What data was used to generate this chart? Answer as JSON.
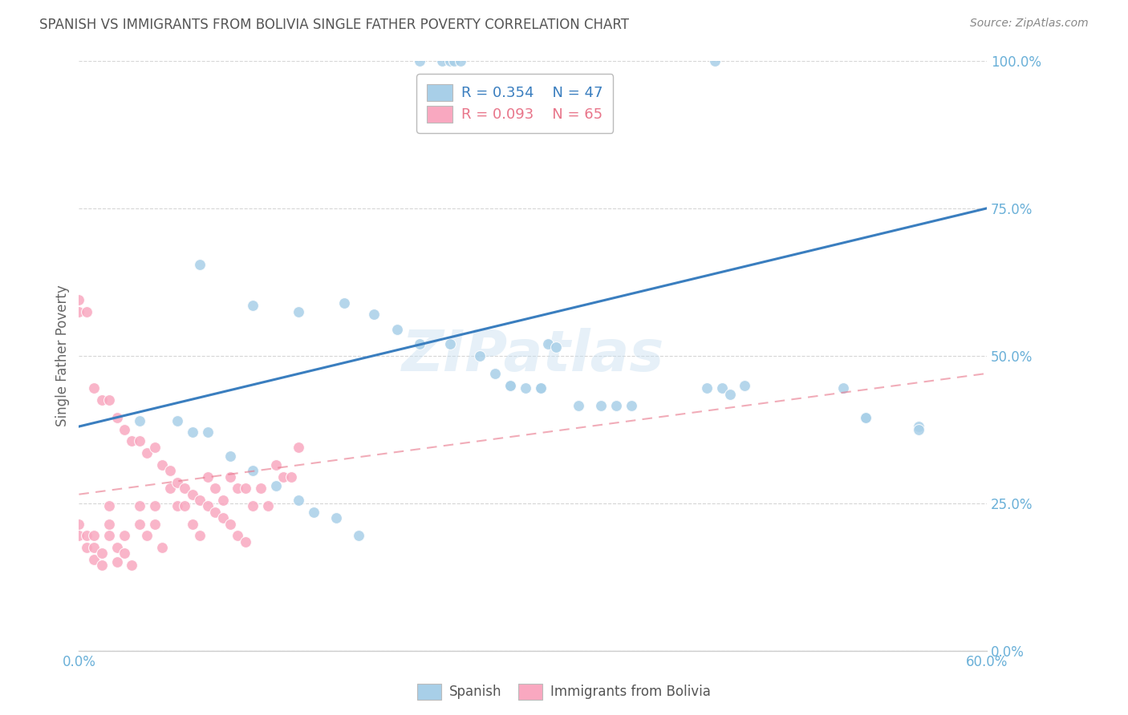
{
  "title": "SPANISH VS IMMIGRANTS FROM BOLIVIA SINGLE FATHER POVERTY CORRELATION CHART",
  "source": "Source: ZipAtlas.com",
  "ylabel": "Single Father Poverty",
  "ytick_labels": [
    "0.0%",
    "25.0%",
    "50.0%",
    "75.0%",
    "100.0%"
  ],
  "ytick_values": [
    0,
    0.25,
    0.5,
    0.75,
    1.0
  ],
  "xlim": [
    0,
    0.6
  ],
  "ylim": [
    0,
    1.0
  ],
  "legend_label_blue": "Spanish",
  "legend_label_pink": "Immigrants from Bolivia",
  "blue_color": "#a8cfe8",
  "pink_color": "#f9a8c0",
  "blue_line_color": "#3a7ebf",
  "pink_line_color": "#e8758a",
  "axis_color": "#6ab0d8",
  "watermark": "ZIPatlas",
  "spanish_x": [
    0.225,
    0.24,
    0.245,
    0.248,
    0.252,
    0.42,
    0.08,
    0.115,
    0.145,
    0.175,
    0.195,
    0.21,
    0.225,
    0.245,
    0.265,
    0.275,
    0.285,
    0.285,
    0.295,
    0.305,
    0.305,
    0.31,
    0.315,
    0.33,
    0.345,
    0.355,
    0.365,
    0.415,
    0.425,
    0.43,
    0.44,
    0.505,
    0.52,
    0.52,
    0.555,
    0.555,
    0.04,
    0.065,
    0.075,
    0.085,
    0.1,
    0.115,
    0.13,
    0.145,
    0.155,
    0.17,
    0.185
  ],
  "spanish_y": [
    1.0,
    1.0,
    1.0,
    1.0,
    1.0,
    1.0,
    0.655,
    0.585,
    0.575,
    0.59,
    0.57,
    0.545,
    0.52,
    0.52,
    0.5,
    0.47,
    0.45,
    0.45,
    0.445,
    0.445,
    0.445,
    0.52,
    0.515,
    0.415,
    0.415,
    0.415,
    0.415,
    0.445,
    0.445,
    0.435,
    0.45,
    0.445,
    0.395,
    0.395,
    0.38,
    0.375,
    0.39,
    0.39,
    0.37,
    0.37,
    0.33,
    0.305,
    0.28,
    0.255,
    0.235,
    0.225,
    0.195
  ],
  "bolivia_x": [
    0.0,
    0.0,
    0.005,
    0.005,
    0.01,
    0.01,
    0.01,
    0.015,
    0.015,
    0.02,
    0.02,
    0.02,
    0.025,
    0.025,
    0.03,
    0.03,
    0.035,
    0.04,
    0.04,
    0.045,
    0.05,
    0.05,
    0.055,
    0.06,
    0.065,
    0.07,
    0.075,
    0.08,
    0.085,
    0.09,
    0.095,
    0.1,
    0.105,
    0.11,
    0.115,
    0.12,
    0.125,
    0.13,
    0.135,
    0.14,
    0.145,
    0.0,
    0.0,
    0.005,
    0.01,
    0.015,
    0.02,
    0.025,
    0.03,
    0.035,
    0.04,
    0.045,
    0.05,
    0.055,
    0.06,
    0.065,
    0.07,
    0.075,
    0.08,
    0.085,
    0.09,
    0.095,
    0.1,
    0.105,
    0.11
  ],
  "bolivia_y": [
    0.215,
    0.195,
    0.195,
    0.175,
    0.195,
    0.175,
    0.155,
    0.165,
    0.145,
    0.245,
    0.215,
    0.195,
    0.175,
    0.15,
    0.195,
    0.165,
    0.145,
    0.245,
    0.215,
    0.195,
    0.245,
    0.215,
    0.175,
    0.275,
    0.245,
    0.245,
    0.215,
    0.195,
    0.295,
    0.275,
    0.255,
    0.295,
    0.275,
    0.275,
    0.245,
    0.275,
    0.245,
    0.315,
    0.295,
    0.295,
    0.345,
    0.595,
    0.575,
    0.575,
    0.445,
    0.425,
    0.425,
    0.395,
    0.375,
    0.355,
    0.355,
    0.335,
    0.345,
    0.315,
    0.305,
    0.285,
    0.275,
    0.265,
    0.255,
    0.245,
    0.235,
    0.225,
    0.215,
    0.195,
    0.185
  ],
  "blue_trend_x": [
    0.0,
    0.6
  ],
  "blue_trend_y": [
    0.38,
    0.75
  ],
  "pink_trend_x": [
    0.0,
    0.6
  ],
  "pink_trend_y": [
    0.265,
    0.47
  ]
}
